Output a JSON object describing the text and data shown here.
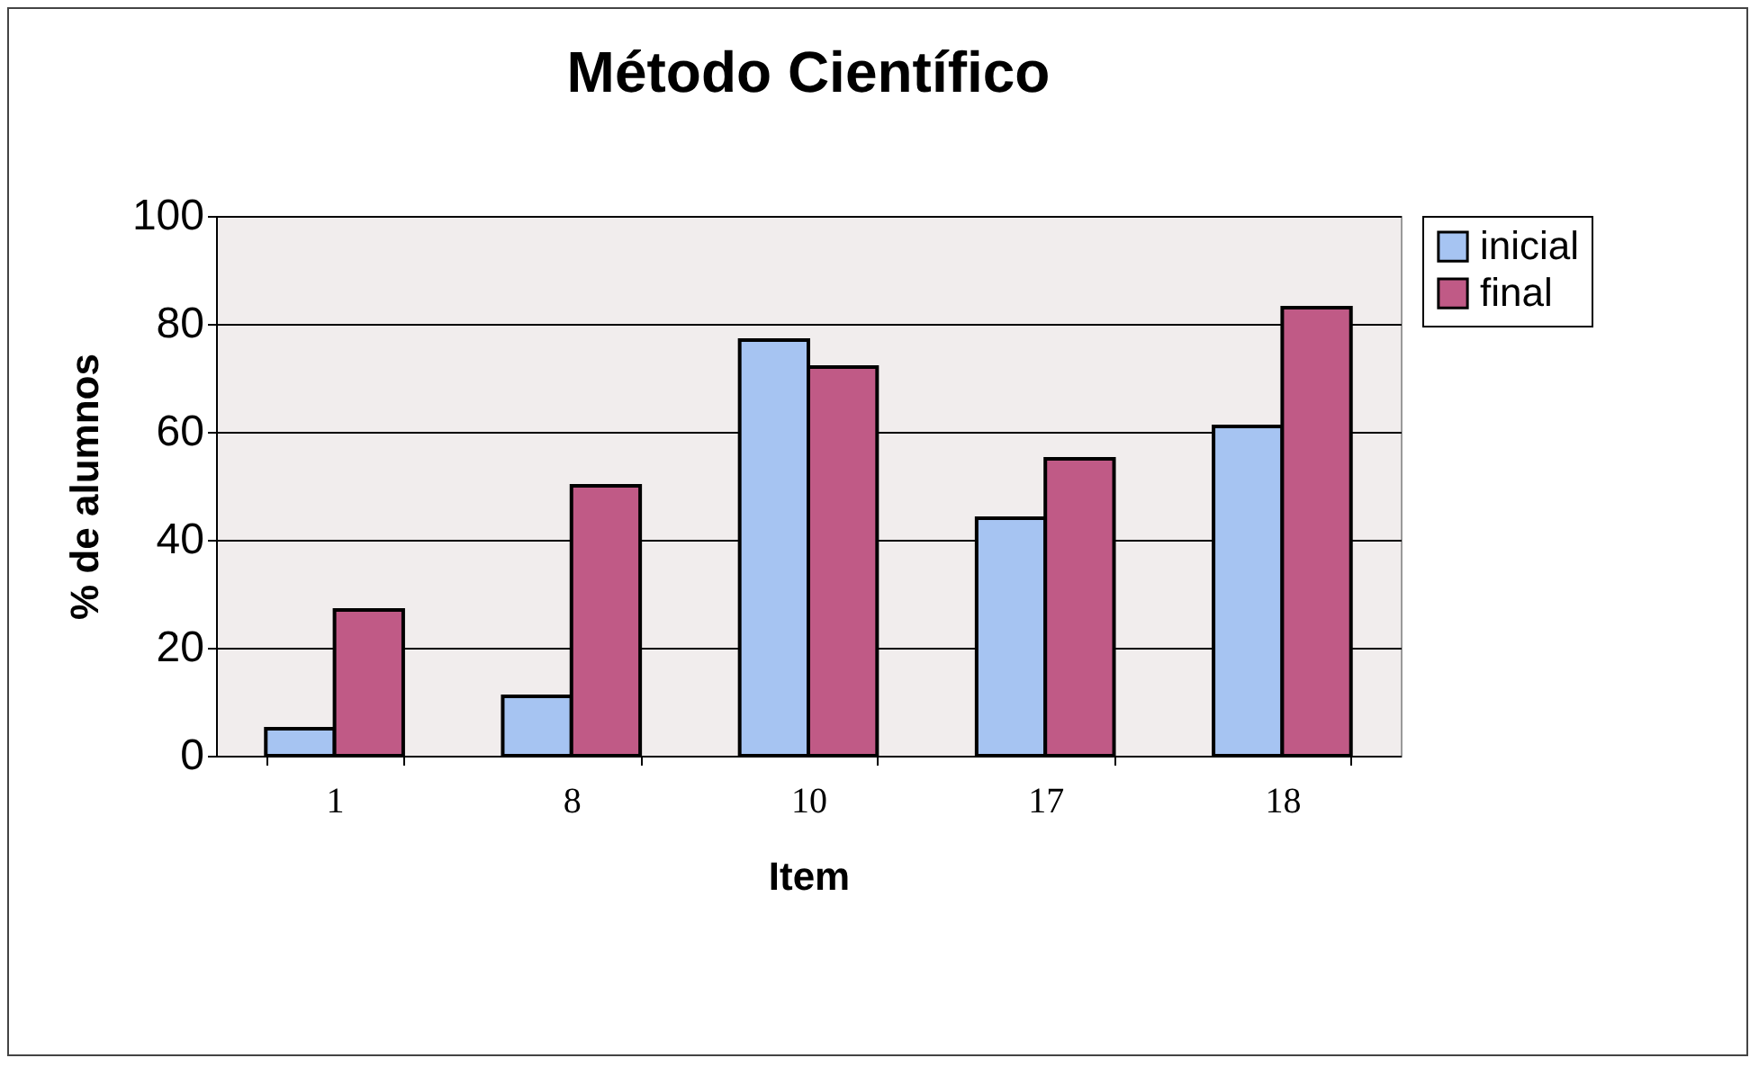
{
  "chart_data": {
    "type": "bar",
    "title": "Método Científico",
    "xlabel": "Item",
    "ylabel": "% de alumnos",
    "categories": [
      "1",
      "8",
      "10",
      "17",
      "18"
    ],
    "series": [
      {
        "name": "inicial",
        "color": "#a6c4f2",
        "values": [
          5,
          11,
          77,
          44,
          61
        ]
      },
      {
        "name": "final",
        "color": "#c05a86",
        "values": [
          27,
          50,
          72,
          55,
          83
        ]
      }
    ],
    "ylim": [
      0,
      100
    ],
    "yticks": [
      0,
      20,
      40,
      60,
      80,
      100
    ],
    "grid": "y",
    "legend": "right"
  }
}
